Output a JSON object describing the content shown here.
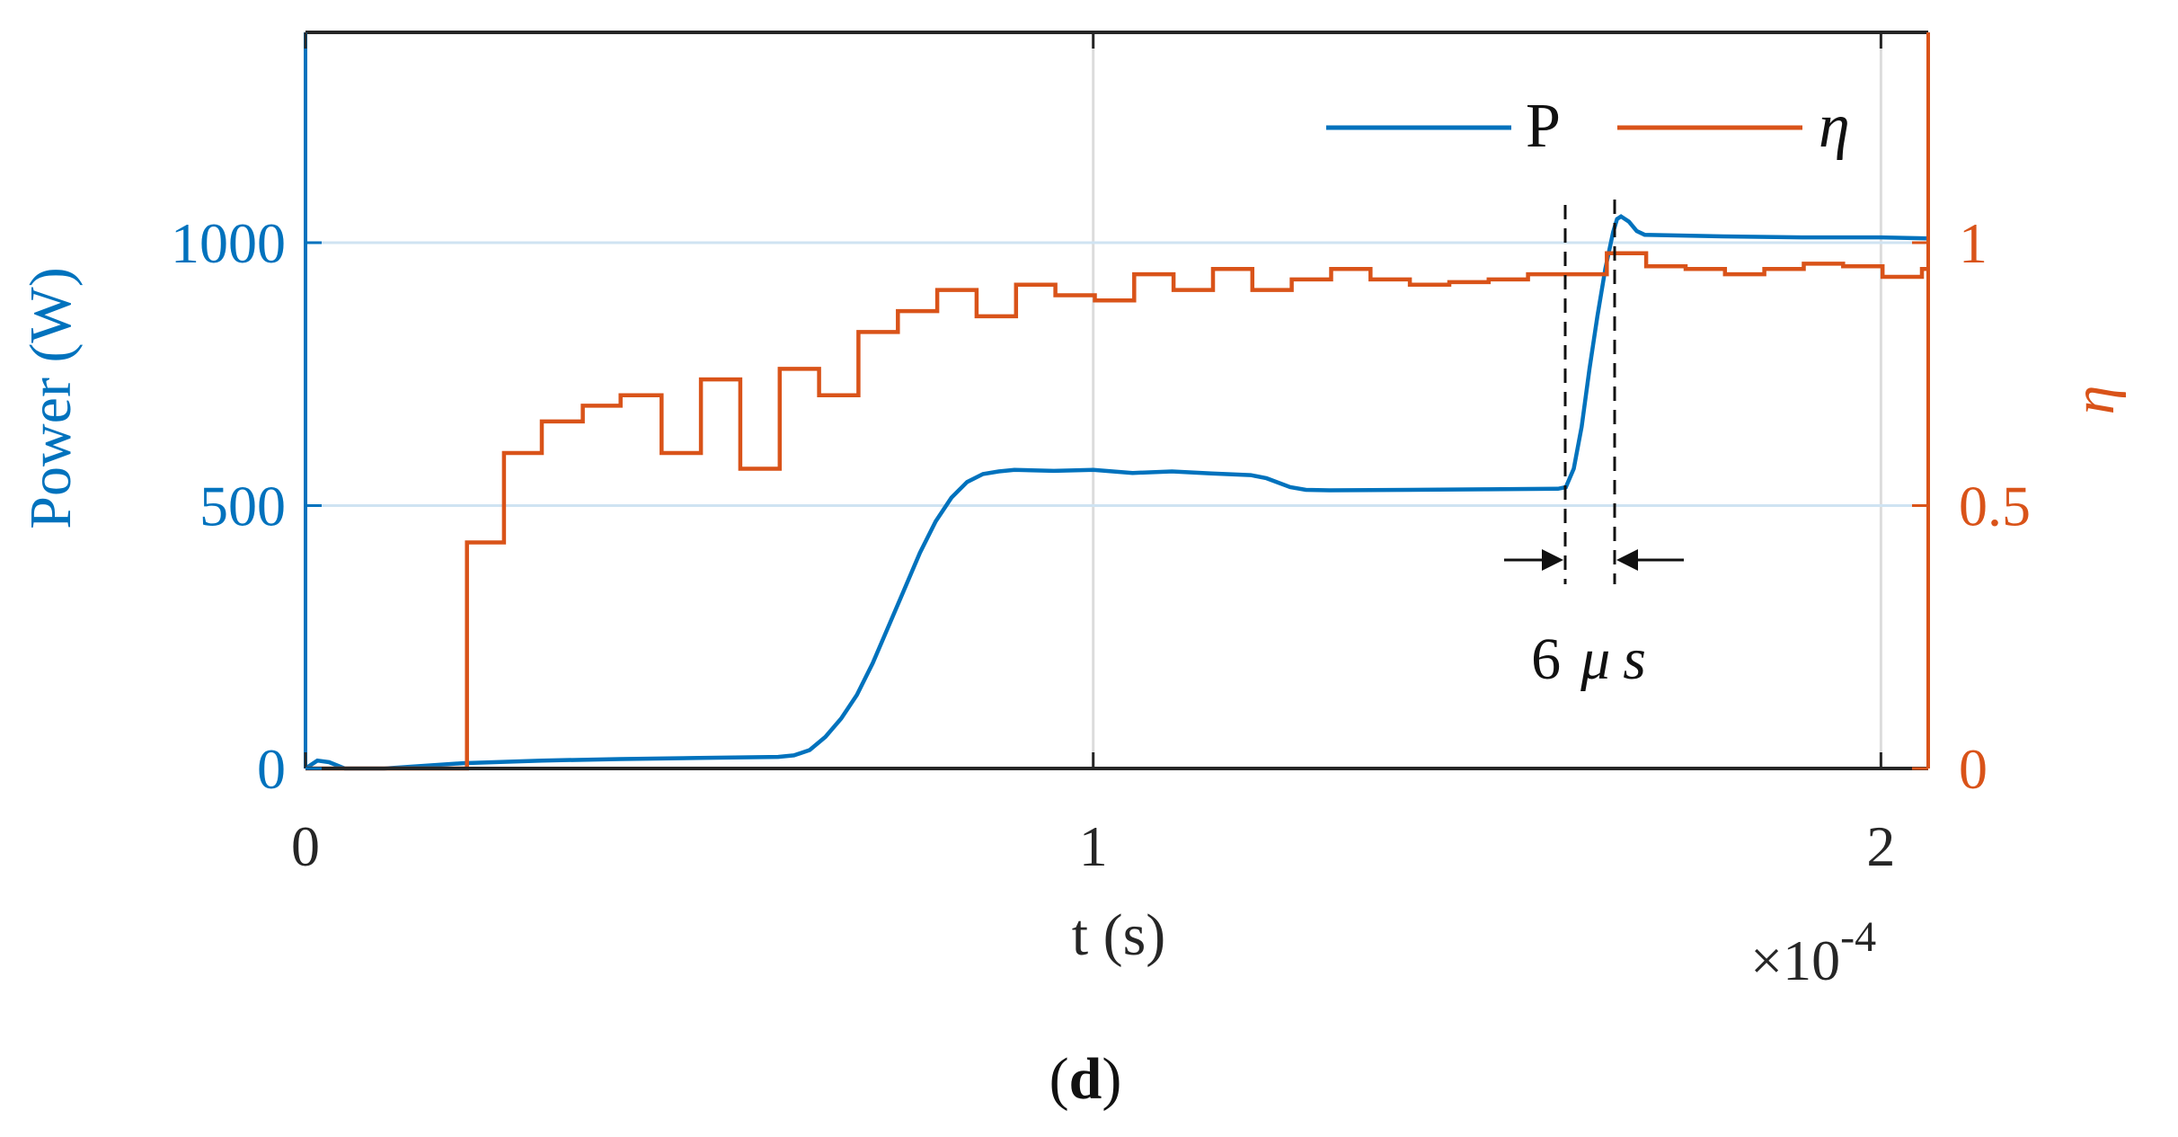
{
  "chart_data": {
    "type": "line",
    "caption": {
      "open": "(",
      "letter": "d",
      "close": ")"
    },
    "x_axis": {
      "label": "t (s)",
      "range": [
        0,
        0.000206
      ],
      "ticks": [
        0,
        0.0001,
        0.0002
      ],
      "tick_labels": [
        "0",
        "1",
        "2"
      ],
      "multiplier_base": "×10",
      "multiplier_exp": "-4"
    },
    "y_axis_left": {
      "label": "Power (W)",
      "range": [
        0,
        1400
      ],
      "ticks": [
        0,
        500,
        1000
      ],
      "tick_labels": [
        "0",
        "500",
        "1000"
      ],
      "color": "#0072BD"
    },
    "y_axis_right": {
      "label": "η",
      "range": [
        0,
        1.4
      ],
      "ticks": [
        0,
        0.5,
        1
      ],
      "tick_labels": [
        "0",
        "0.5",
        "1"
      ],
      "color": "#D95319"
    },
    "grid": true,
    "legend": {
      "placement": "top-right",
      "entries": [
        "P",
        "η"
      ]
    },
    "annotation": {
      "num": "6",
      "mu": "μ",
      "s": "s",
      "value_us": 6,
      "from_x": 0.00016,
      "to_x": 0.000167
    },
    "series": [
      {
        "name": "P",
        "axis": "left",
        "color": "#0072BD",
        "points": [
          [
            0,
            0
          ],
          [
            1.5e-06,
            15
          ],
          [
            3e-06,
            12
          ],
          [
            5e-06,
            0
          ],
          [
            1e-05,
            0
          ],
          [
            2e-05,
            10
          ],
          [
            3e-05,
            15
          ],
          [
            4e-05,
            18
          ],
          [
            5e-05,
            20
          ],
          [
            6e-05,
            22
          ],
          [
            6.2e-05,
            25
          ],
          [
            6.4e-05,
            35
          ],
          [
            6.6e-05,
            60
          ],
          [
            6.8e-05,
            95
          ],
          [
            7e-05,
            140
          ],
          [
            7.2e-05,
            200
          ],
          [
            7.4e-05,
            270
          ],
          [
            7.6e-05,
            340
          ],
          [
            7.8e-05,
            410
          ],
          [
            8e-05,
            470
          ],
          [
            8.2e-05,
            515
          ],
          [
            8.4e-05,
            545
          ],
          [
            8.6e-05,
            560
          ],
          [
            8.8e-05,
            565
          ],
          [
            9e-05,
            568
          ],
          [
            9.5e-05,
            566
          ],
          [
            0.0001,
            568
          ],
          [
            0.000105,
            562
          ],
          [
            0.00011,
            565
          ],
          [
            0.000115,
            561
          ],
          [
            0.00012,
            558
          ],
          [
            0.000122,
            552
          ],
          [
            0.000125,
            535
          ],
          [
            0.000127,
            530
          ],
          [
            0.00013,
            529
          ],
          [
            0.00014,
            530
          ],
          [
            0.00015,
            531
          ],
          [
            0.000159,
            532
          ],
          [
            0.00016,
            535
          ],
          [
            0.000161,
            570
          ],
          [
            0.000162,
            650
          ],
          [
            0.000163,
            760
          ],
          [
            0.000164,
            860
          ],
          [
            0.000165,
            950
          ],
          [
            0.000166,
            1020
          ],
          [
            0.0001665,
            1045
          ],
          [
            0.000167,
            1050
          ],
          [
            0.000168,
            1040
          ],
          [
            0.000169,
            1022
          ],
          [
            0.00017,
            1015
          ],
          [
            0.00018,
            1012
          ],
          [
            0.00019,
            1010
          ],
          [
            0.0002,
            1010
          ],
          [
            0.000206,
            1008
          ]
        ]
      },
      {
        "name": "η",
        "axis": "right",
        "color": "#D95319",
        "steps": [
          [
            0,
            0
          ],
          [
            2.05e-05,
            0.43
          ],
          [
            2.52e-05,
            0.6
          ],
          [
            3e-05,
            0.66
          ],
          [
            3.52e-05,
            0.69
          ],
          [
            4e-05,
            0.71
          ],
          [
            4.52e-05,
            0.6
          ],
          [
            5.02e-05,
            0.74
          ],
          [
            5.52e-05,
            0.57
          ],
          [
            6.02e-05,
            0.76
          ],
          [
            6.52e-05,
            0.71
          ],
          [
            7.02e-05,
            0.83
          ],
          [
            7.52e-05,
            0.87
          ],
          [
            8.02e-05,
            0.91
          ],
          [
            8.52e-05,
            0.86
          ],
          [
            9.02e-05,
            0.92
          ],
          [
            9.52e-05,
            0.9
          ],
          [
            0.0001002,
            0.89
          ],
          [
            0.0001052,
            0.94
          ],
          [
            0.0001102,
            0.91
          ],
          [
            0.0001152,
            0.95
          ],
          [
            0.0001202,
            0.91
          ],
          [
            0.0001252,
            0.93
          ],
          [
            0.0001302,
            0.95
          ],
          [
            0.0001352,
            0.93
          ],
          [
            0.0001402,
            0.92
          ],
          [
            0.0001452,
            0.925
          ],
          [
            0.0001502,
            0.93
          ],
          [
            0.0001552,
            0.94
          ],
          [
            0.0001602,
            0.94
          ],
          [
            0.0001652,
            0.98
          ],
          [
            0.0001702,
            0.955
          ],
          [
            0.0001752,
            0.95
          ],
          [
            0.0001802,
            0.94
          ],
          [
            0.0001852,
            0.95
          ],
          [
            0.0001902,
            0.96
          ],
          [
            0.0001952,
            0.955
          ],
          [
            0.0002002,
            0.935
          ],
          [
            0.0002052,
            0.95
          ],
          [
            0.000206,
            0.95
          ]
        ]
      }
    ]
  }
}
